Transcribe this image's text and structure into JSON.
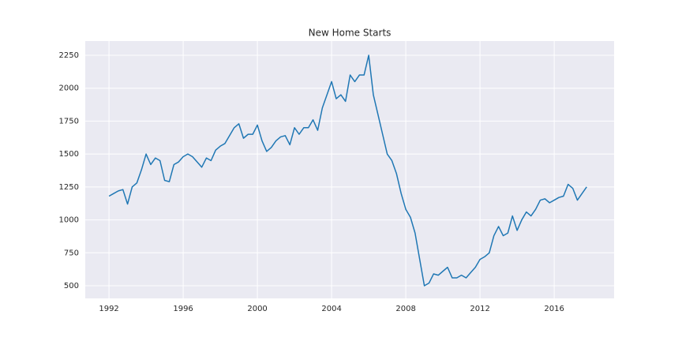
{
  "chart_data": {
    "type": "line",
    "title": "New Home Starts",
    "x": [
      1992,
      1992.25,
      1992.5,
      1992.75,
      1993,
      1993.25,
      1993.5,
      1993.75,
      1994,
      1994.25,
      1994.5,
      1994.75,
      1995,
      1995.25,
      1995.5,
      1995.75,
      1996,
      1996.25,
      1996.5,
      1996.75,
      1997,
      1997.25,
      1997.5,
      1997.75,
      1998,
      1998.25,
      1998.5,
      1998.75,
      1999,
      1999.25,
      1999.5,
      1999.75,
      2000,
      2000.25,
      2000.5,
      2000.75,
      2001,
      2001.25,
      2001.5,
      2001.75,
      2002,
      2002.25,
      2002.5,
      2002.75,
      2003,
      2003.25,
      2003.5,
      2003.75,
      2004,
      2004.25,
      2004.5,
      2004.75,
      2005,
      2005.25,
      2005.5,
      2005.75,
      2006,
      2006.25,
      2006.5,
      2006.75,
      2007,
      2007.25,
      2007.5,
      2007.75,
      2008,
      2008.25,
      2008.5,
      2008.75,
      2009,
      2009.25,
      2009.5,
      2009.75,
      2010,
      2010.25,
      2010.5,
      2010.75,
      2011,
      2011.25,
      2011.5,
      2011.75,
      2012,
      2012.25,
      2012.5,
      2012.75,
      2013,
      2013.25,
      2013.5,
      2013.75,
      2014,
      2014.25,
      2014.5,
      2014.75,
      2015,
      2015.25,
      2015.5,
      2015.75,
      2016,
      2016.25,
      2016.5,
      2016.75,
      2017,
      2017.25,
      2017.5,
      2017.75
    ],
    "series": [
      {
        "color": "#1f77b4",
        "values": [
          1180,
          1200,
          1220,
          1230,
          1120,
          1250,
          1280,
          1380,
          1500,
          1420,
          1470,
          1450,
          1300,
          1290,
          1420,
          1440,
          1480,
          1500,
          1480,
          1440,
          1400,
          1470,
          1450,
          1530,
          1560,
          1580,
          1640,
          1700,
          1730,
          1620,
          1650,
          1650,
          1720,
          1600,
          1520,
          1550,
          1600,
          1630,
          1640,
          1570,
          1700,
          1650,
          1700,
          1700,
          1760,
          1680,
          1850,
          1950,
          2050,
          1920,
          1950,
          1900,
          2100,
          2050,
          2100,
          2100,
          2250,
          1950,
          1800,
          1650,
          1500,
          1450,
          1350,
          1200,
          1080,
          1020,
          900,
          700,
          500,
          520,
          590,
          580,
          610,
          640,
          560,
          560,
          580,
          560,
          600,
          640,
          700,
          720,
          750,
          880,
          950,
          880,
          900,
          1030,
          920,
          1000,
          1060,
          1030,
          1080,
          1150,
          1160,
          1130,
          1150,
          1170,
          1180,
          1270,
          1240,
          1150,
          1200,
          1250
        ]
      }
    ],
    "xlim": [
      1990.72,
      2019.23
    ],
    "xticks": [
      1992,
      1996,
      2000,
      2004,
      2008,
      2012,
      2016
    ],
    "ylim": [
      404,
      2358
    ],
    "yticks": [
      500,
      750,
      1000,
      1250,
      1500,
      1750,
      2000,
      2250
    ],
    "grid": true
  }
}
